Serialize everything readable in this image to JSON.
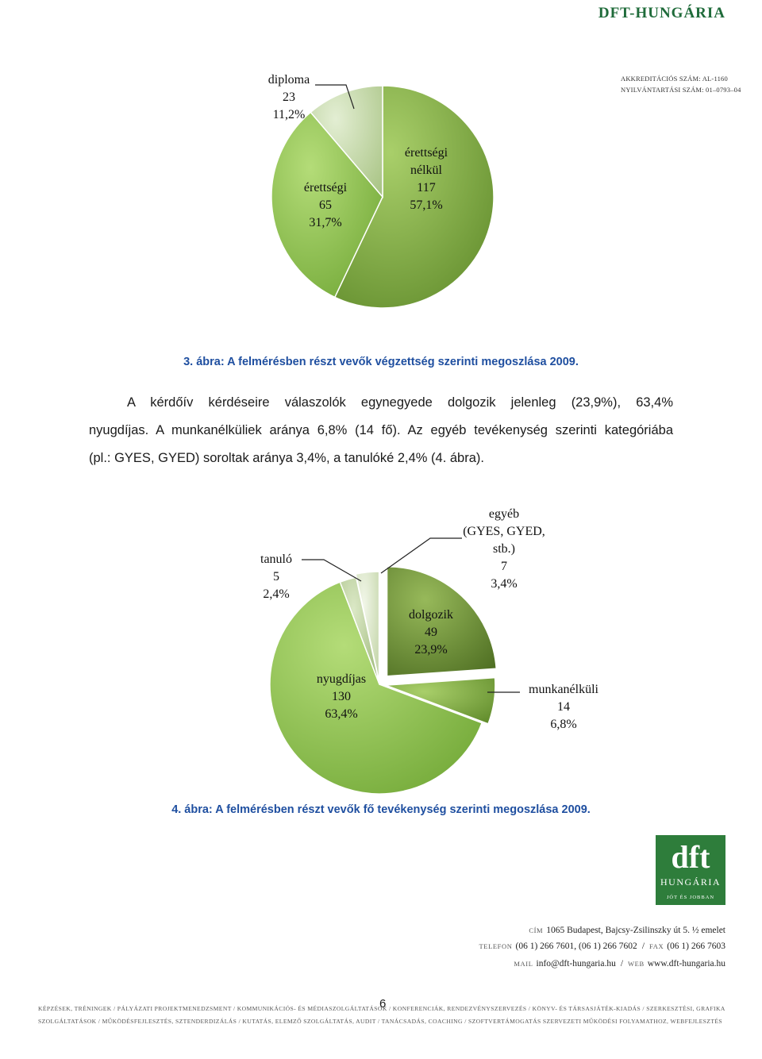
{
  "header": {
    "brand": "DFT-HUNGÁRIA",
    "accreditation_line1": "AKKREDITÁCIÓS SZÁM: AL-1160",
    "accreditation_line2": "NYILVÁNTARTÁSI SZÁM: 01–0793–04"
  },
  "captions": {
    "figure3": "3. ábra: A felmérésben részt vevők végzettség szerinti megoszlása 2009.",
    "figure4": "4. ábra: A felmérésben részt vevők fő tevékenység szerinti megoszlása 2009."
  },
  "paragraph": {
    "line1": "A kérdőív kérdéseire válaszolók egynegyede dolgozik jelenleg (23,9%), 63,4%",
    "line2": "nyugdíjas. A munkanélküliek aránya 6,8% (14 fő). Az egyéb tevékenység szerinti kategóriába",
    "line3": "(pl.: GYES, GYED) soroltak aránya 3,4%, a tanulóké 2,4% (4. ábra)."
  },
  "chart_data": [
    {
      "type": "pie",
      "title": "",
      "slices": [
        {
          "label_lines": [
            "érettségi",
            "nélkül",
            "117",
            "57,1%"
          ],
          "count": 117,
          "percent": 57.1,
          "color": "#7aa23e"
        },
        {
          "label_lines": [
            "érettségi",
            "65",
            "31,7%"
          ],
          "count": 65,
          "percent": 31.7,
          "color": "#8cc24b"
        },
        {
          "label_lines": [
            "diploma",
            "23",
            "11,2%"
          ],
          "count": 23,
          "percent": 11.2,
          "color": "#c4d9a4"
        }
      ]
    },
    {
      "type": "pie",
      "title": "",
      "slices": [
        {
          "label_lines": [
            "dolgozik",
            "49",
            "23,9%"
          ],
          "count": 49,
          "percent": 23.9,
          "color": "#6a8a30"
        },
        {
          "label_lines": [
            "munkanélküli",
            "14",
            "6,8%"
          ],
          "count": 14,
          "percent": 6.8,
          "color": "#7aa23e"
        },
        {
          "label_lines": [
            "nyugdíjas",
            "130",
            "63,4%"
          ],
          "count": 130,
          "percent": 63.4,
          "color": "#8cc24b"
        },
        {
          "label_lines": [
            "tanuló",
            "5",
            "2,4%"
          ],
          "count": 5,
          "percent": 2.4,
          "color": "#b8cf98"
        },
        {
          "label_lines": [
            "egyéb",
            "(GYES, GYED,",
            "stb.)",
            "7",
            "3,4%"
          ],
          "count": 7,
          "percent": 3.4,
          "color": "#dde8cc"
        }
      ]
    }
  ],
  "logo": {
    "text": "dft",
    "sub": "HUNGÁRIA",
    "slogan": "JÓT ÉS JOBBAN"
  },
  "contact": {
    "address_label": "CÍM",
    "address": "1065 Budapest, Bajcsy-Zsilinszky út 5. ½ emelet",
    "phone_label": "TELEFON",
    "phone": "(06 1) 266 7601, (06 1) 266 7602",
    "fax_label": "FAX",
    "fax": "(06 1) 266 7603",
    "mail_label": "MAIL",
    "mail": "info@dft-hungaria.hu",
    "web_label": "WEB",
    "web": "www.dft-hungaria.hu"
  },
  "services": {
    "line1": "KÉPZÉSEK, TRÉNINGEK / PÁLYÁZATI PROJEKTMENEDZSMENT / KOMMUNIKÁCIÓS- ÉS MÉDIASZOLGÁLTATÁSOK / KONFERENCIÁK, RENDEZVÉNYSZERVEZÉS / KÖNYV- ÉS TÁRSASJÁTÉK-KIADÁS / SZERKESZTÉSI, GRAFIKAI ÉS NYOMDAI",
    "line2": "SZOLGÁLTATÁSOK / MŰKÖDÉSFEJLESZTÉS, SZTENDERDIZÁLÁS / KUTATÁS, ELEMZŐ SZOLGÁLTATÁS, AUDIT / TANÁCSADÁS, COACHING / SZOFTVERTÁMOGATÁS SZERVEZETI MŰKÖDÉSI FOLYAMATHOZ, WEBFEJLESZTÉS"
  },
  "page_number": "6"
}
